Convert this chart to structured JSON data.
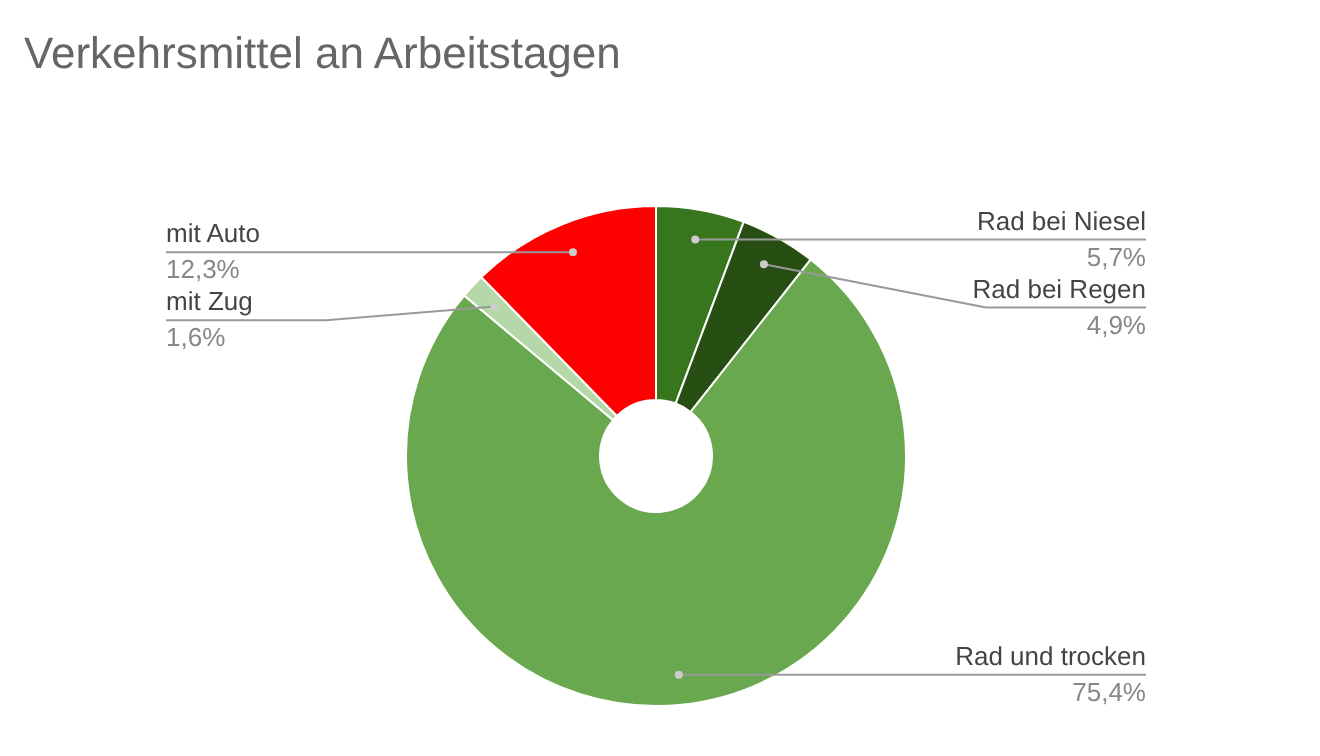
{
  "chart_data": {
    "type": "donut",
    "title": "Verkehrsmittel an Arbeitstagen",
    "categories": [
      "Rad bei Niesel",
      "Rad bei Regen",
      "Rad und trocken",
      "mit Zug",
      "mit Auto"
    ],
    "values": [
      5.7,
      4.9,
      75.4,
      1.6,
      12.3
    ],
    "colors": [
      "#38761d",
      "#274e13",
      "#6aa84f",
      "#b6d7a8",
      "#ff0000"
    ],
    "value_labels": [
      "5,7%",
      "4,9%",
      "75,4%",
      "1,6%",
      "12,3%"
    ],
    "legend": false
  }
}
